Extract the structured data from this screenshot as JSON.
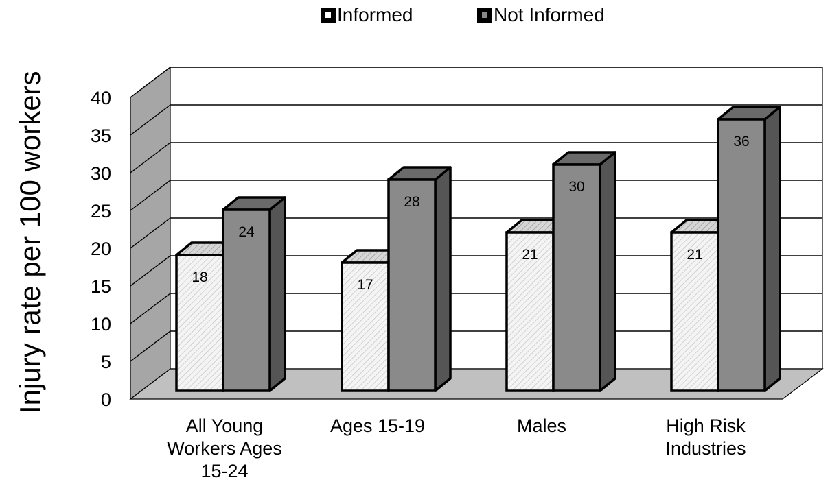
{
  "chart_data": {
    "type": "bar",
    "categories": [
      [
        "All Young",
        "Workers  Ages",
        "15-24"
      ],
      [
        "Ages 15-19"
      ],
      [
        "Males"
      ],
      [
        "High Risk",
        "Industries"
      ]
    ],
    "series": [
      {
        "name": "Informed",
        "values": [
          18,
          17,
          21,
          21
        ]
      },
      {
        "name": "Not Informed",
        "values": [
          24,
          28,
          30,
          36
        ]
      }
    ],
    "ylabel": "Injury rate per 100 workers",
    "ylim": [
      0,
      40
    ],
    "yticks": [
      0,
      5,
      10,
      15,
      20,
      25,
      30,
      35,
      40
    ],
    "data_labels": [
      "18",
      "17",
      "21",
      "21",
      "24",
      "28",
      "30",
      "36"
    ],
    "legend_position": "top",
    "grid": true,
    "style": "3d",
    "colors": {
      "informed_front": "#f2f2f2",
      "informed_top": "#cfcfcf",
      "not_informed_front": "#8a8a8a",
      "not_informed_top": "#6a6a6a",
      "not_informed_side": "#555555",
      "wall_side": "#a6a6a6",
      "floor": "#c0c0c0"
    }
  }
}
